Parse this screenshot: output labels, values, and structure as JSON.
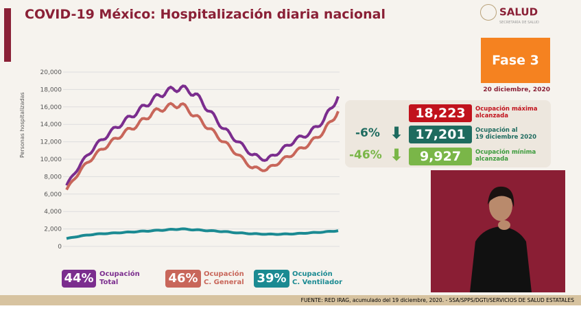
{
  "header": {
    "title": "COVID-19 México: Hospitalización diaria nacional",
    "logo": "SALUD",
    "logo_sub": "SECRETARÍA DE SALUD"
  },
  "phase": {
    "label": "Fase 3",
    "date": "20 diciembre, 2020"
  },
  "stats": [
    {
      "value": "18,223",
      "label1": "Ocupación máxima",
      "label2": "alcanzada",
      "color": "#c1121c",
      "pct": "",
      "arrow": ""
    },
    {
      "value": "17,201",
      "label1": "Ocupación al",
      "label2": "19 diciembre 2020",
      "color": "#1e6b5f",
      "pct": "-6%",
      "arrow": "arrow-down-icon"
    },
    {
      "value": "9,927",
      "label1": "Ocupación mínima",
      "label2": "alcanzada",
      "color": "#7ab648",
      "pct": "-46%",
      "arrow": "arrow-down-icon"
    }
  ],
  "legend": [
    {
      "pct": "44%",
      "l1": "Ocupación",
      "l2": "Total",
      "color": "#7b2d8e"
    },
    {
      "pct": "46%",
      "l1": "Ocupación",
      "l2": "C. General",
      "color": "#c8665a"
    },
    {
      "pct": "39%",
      "l1": "Ocupación",
      "l2": "C. Ventilador",
      "color": "#1b8a92"
    }
  ],
  "footer": "FUENTE: RED IRAG, acumulado del 19 diciembre, 2020. -  SSA/SPPS/DGTI/SERVICIOS DE SALUD ESTATALES",
  "chart_data": {
    "type": "line",
    "ylabel": "Personas hospitalizadas",
    "ylim": [
      0,
      20000
    ],
    "yticks": [
      "0",
      "2,000",
      "4,000",
      "6,000",
      "8,000",
      "10,000",
      "12,000",
      "14,000",
      "16,000",
      "18,000",
      "20,000"
    ],
    "grid": true,
    "series": [
      {
        "name": "Ocupación Total",
        "color": "#7b2d8e",
        "values": [
          7000,
          9500,
          11500,
          13000,
          14300,
          15500,
          16800,
          17800,
          18223,
          17500,
          15500,
          13500,
          12000,
          10500,
          9927,
          11000,
          12200,
          13000,
          14500,
          17201
        ]
      },
      {
        "name": "Ocupación C. General",
        "color": "#c8665a",
        "values": [
          6500,
          8800,
          10500,
          11800,
          13000,
          14000,
          15300,
          16000,
          16300,
          15000,
          13500,
          12000,
          10500,
          9000,
          8800,
          9800,
          10800,
          11800,
          13200,
          15500
        ]
      },
      {
        "name": "Ocupación C. Ventilador",
        "color": "#1b8a92",
        "values": [
          900,
          1200,
          1400,
          1500,
          1600,
          1700,
          1800,
          1900,
          2000,
          1900,
          1800,
          1700,
          1550,
          1450,
          1400,
          1400,
          1450,
          1550,
          1650,
          1800
        ]
      }
    ]
  }
}
